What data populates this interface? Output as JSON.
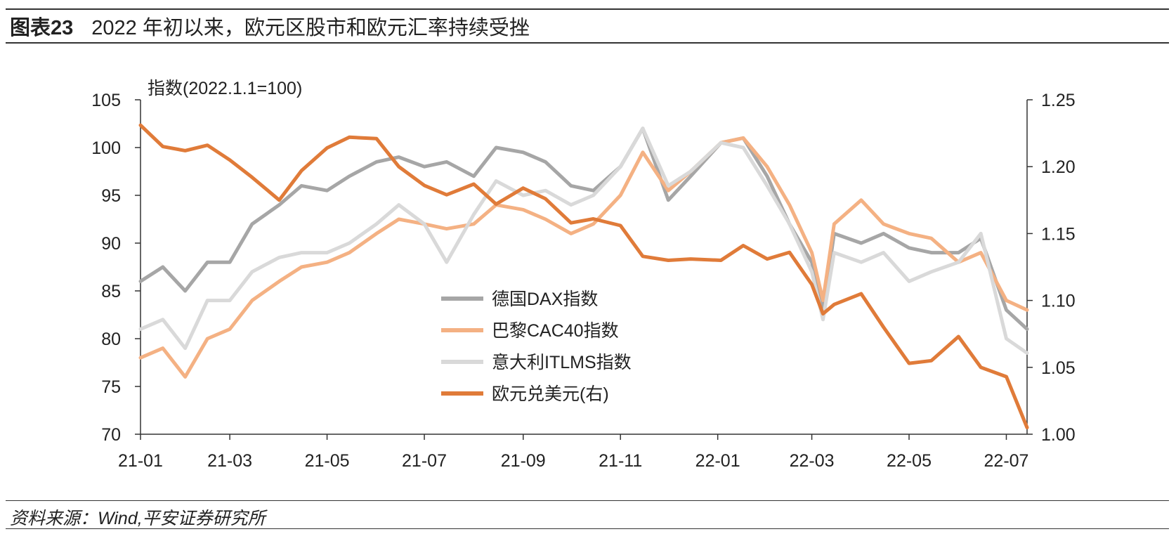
{
  "figure": {
    "label": "图表23",
    "title": "2022 年初以来，欧元区股市和欧元汇率持续受挫",
    "source": "资料来源：Wind,平安证券研究所"
  },
  "chart_data": {
    "type": "line",
    "title": "2022 年初以来，欧元区股市和欧元汇率持续受挫",
    "ylabel_left": "指数(2022.1.1=100)",
    "ylim_left": [
      70,
      105
    ],
    "yticks_left": [
      "70",
      "75",
      "80",
      "85",
      "90",
      "95",
      "100",
      "105"
    ],
    "ylim_right": [
      1.0,
      1.25
    ],
    "yticks_right": [
      "1.00",
      "1.05",
      "1.10",
      "1.15",
      "1.20",
      "1.25"
    ],
    "xlim": [
      "2021-01-04",
      "2022-07-14"
    ],
    "xticks": [
      "21-01",
      "21-03",
      "21-05",
      "21-07",
      "21-09",
      "21-11",
      "22-01",
      "22-03",
      "22-05",
      "22-07"
    ],
    "legend_position": "center",
    "series": [
      {
        "name": "德国DAX指数",
        "axis": "left",
        "color": "#a6a6a6",
        "x": [
          "2021-01-04",
          "2021-01-18",
          "2021-02-01",
          "2021-02-15",
          "2021-03-01",
          "2021-03-15",
          "2021-04-01",
          "2021-04-15",
          "2021-05-01",
          "2021-05-15",
          "2021-06-01",
          "2021-06-15",
          "2021-07-01",
          "2021-07-15",
          "2021-08-01",
          "2021-08-15",
          "2021-09-01",
          "2021-09-15",
          "2021-10-01",
          "2021-10-15",
          "2021-11-01",
          "2021-11-15",
          "2021-12-01",
          "2021-12-15",
          "2022-01-03",
          "2022-01-17",
          "2022-02-01",
          "2022-02-15",
          "2022-03-01",
          "2022-03-08",
          "2022-03-15",
          "2022-04-01",
          "2022-04-15",
          "2022-05-01",
          "2022-05-15",
          "2022-06-01",
          "2022-06-15",
          "2022-07-01",
          "2022-07-14"
        ],
        "values": [
          86,
          87.5,
          85,
          88,
          88,
          92,
          94,
          96,
          95.5,
          97,
          98.5,
          99,
          98,
          98.5,
          97,
          100,
          99.5,
          98.5,
          96,
          95.5,
          98,
          102,
          94.5,
          97,
          100.5,
          101,
          97,
          92,
          88,
          83,
          91,
          90,
          91,
          89.5,
          89,
          89,
          90.5,
          83,
          81
        ]
      },
      {
        "name": "巴黎CAC40指数",
        "axis": "left",
        "color": "#f4b183",
        "x": [
          "2021-01-04",
          "2021-01-18",
          "2021-02-01",
          "2021-02-15",
          "2021-03-01",
          "2021-03-15",
          "2021-04-01",
          "2021-04-15",
          "2021-05-01",
          "2021-05-15",
          "2021-06-01",
          "2021-06-15",
          "2021-07-01",
          "2021-07-15",
          "2021-08-01",
          "2021-08-15",
          "2021-09-01",
          "2021-09-15",
          "2021-10-01",
          "2021-10-15",
          "2021-11-01",
          "2021-11-15",
          "2021-12-01",
          "2021-12-15",
          "2022-01-03",
          "2022-01-17",
          "2022-02-01",
          "2022-02-15",
          "2022-03-01",
          "2022-03-08",
          "2022-03-15",
          "2022-04-01",
          "2022-04-15",
          "2022-05-01",
          "2022-05-15",
          "2022-06-01",
          "2022-06-15",
          "2022-07-01",
          "2022-07-14"
        ],
        "values": [
          78,
          79,
          76,
          80,
          81,
          84,
          86,
          87.5,
          88,
          89,
          91,
          92.5,
          92,
          91.5,
          92,
          94,
          93.5,
          92.5,
          91,
          92,
          95,
          99.5,
          95.5,
          97.5,
          100.5,
          101,
          98,
          94,
          89,
          84,
          92,
          94.5,
          92,
          91,
          90.5,
          88,
          89,
          84,
          83
        ]
      },
      {
        "name": "意大利ITLMS指数",
        "axis": "left",
        "color": "#d9d9d9",
        "x": [
          "2021-01-04",
          "2021-01-18",
          "2021-02-01",
          "2021-02-15",
          "2021-03-01",
          "2021-03-15",
          "2021-04-01",
          "2021-04-15",
          "2021-05-01",
          "2021-05-15",
          "2021-06-01",
          "2021-06-15",
          "2021-07-01",
          "2021-07-15",
          "2021-08-01",
          "2021-08-15",
          "2021-09-01",
          "2021-09-15",
          "2021-10-01",
          "2021-10-15",
          "2021-11-01",
          "2021-11-15",
          "2021-12-01",
          "2021-12-15",
          "2022-01-03",
          "2022-01-17",
          "2022-02-01",
          "2022-02-15",
          "2022-03-01",
          "2022-03-08",
          "2022-03-15",
          "2022-04-01",
          "2022-04-15",
          "2022-05-01",
          "2022-05-15",
          "2022-06-01",
          "2022-06-15",
          "2022-07-01",
          "2022-07-14"
        ],
        "values": [
          81,
          82,
          79,
          84,
          84,
          87,
          88.5,
          89,
          89,
          90,
          92,
          94,
          92,
          88,
          93,
          96.5,
          95,
          95.5,
          94,
          95,
          98,
          102,
          96,
          97.5,
          100.5,
          100,
          96,
          92,
          87,
          82,
          89,
          88,
          89,
          86,
          87,
          88,
          91,
          80,
          78.5
        ]
      },
      {
        "name": "欧元兑美元(右)",
        "axis": "right",
        "color": "#e07b39",
        "x": [
          "2021-01-04",
          "2021-01-18",
          "2021-02-01",
          "2021-02-15",
          "2021-03-01",
          "2021-03-15",
          "2021-04-01",
          "2021-04-15",
          "2021-05-01",
          "2021-05-15",
          "2021-06-01",
          "2021-06-15",
          "2021-07-01",
          "2021-07-15",
          "2021-08-01",
          "2021-08-15",
          "2021-09-01",
          "2021-09-15",
          "2021-10-01",
          "2021-10-15",
          "2021-11-01",
          "2021-11-15",
          "2021-12-01",
          "2021-12-15",
          "2022-01-03",
          "2022-01-17",
          "2022-02-01",
          "2022-02-15",
          "2022-03-01",
          "2022-03-08",
          "2022-03-15",
          "2022-04-01",
          "2022-04-15",
          "2022-05-01",
          "2022-05-15",
          "2022-06-01",
          "2022-06-15",
          "2022-07-01",
          "2022-07-14"
        ],
        "values": [
          1.231,
          1.215,
          1.212,
          1.216,
          1.205,
          1.192,
          1.175,
          1.197,
          1.214,
          1.222,
          1.221,
          1.2,
          1.186,
          1.179,
          1.187,
          1.172,
          1.184,
          1.176,
          1.158,
          1.161,
          1.156,
          1.133,
          1.13,
          1.131,
          1.13,
          1.141,
          1.131,
          1.136,
          1.112,
          1.09,
          1.097,
          1.105,
          1.08,
          1.053,
          1.055,
          1.073,
          1.05,
          1.043,
          1.005
        ]
      }
    ]
  }
}
